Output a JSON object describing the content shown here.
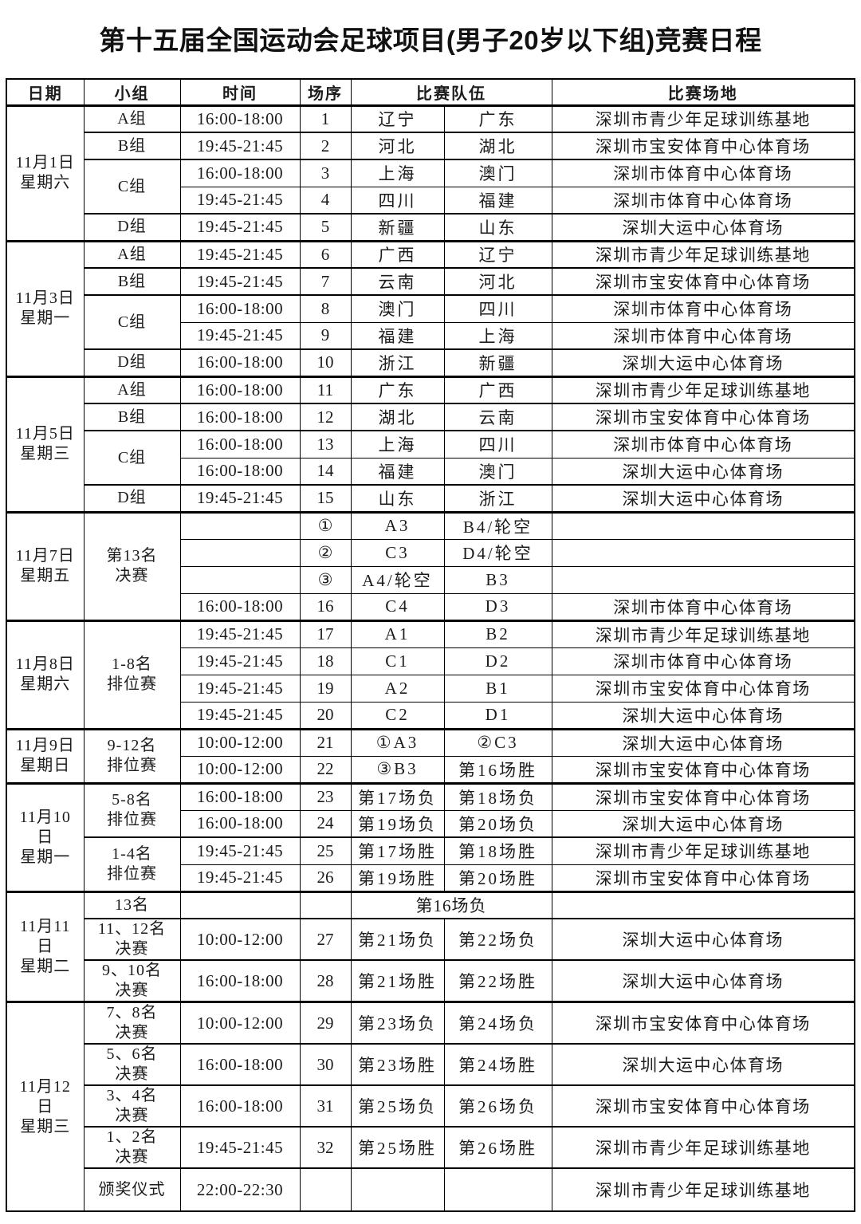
{
  "title": "第十五届全国运动会足球项目(男子20岁以下组)竞赛日程",
  "header": {
    "date": "日期",
    "group": "小组",
    "time": "时间",
    "match_no": "场序",
    "teams": "比赛队伍",
    "venue": "比赛场地"
  },
  "sections": [
    {
      "date_lines": [
        "11月1日",
        "星期六"
      ],
      "groups": [
        {
          "label_lines": [
            "A组"
          ],
          "rows": [
            {
              "time": "16:00-18:00",
              "no": "1",
              "team1": "辽宁",
              "team2": "广东",
              "venue": "深圳市青少年足球训练基地"
            }
          ]
        },
        {
          "label_lines": [
            "B组"
          ],
          "rows": [
            {
              "time": "19:45-21:45",
              "no": "2",
              "team1": "河北",
              "team2": "湖北",
              "venue": "深圳市宝安体育中心体育场"
            }
          ]
        },
        {
          "label_lines": [
            "C组"
          ],
          "rows": [
            {
              "time": "16:00-18:00",
              "no": "3",
              "team1": "上海",
              "team2": "澳门",
              "venue": "深圳市体育中心体育场"
            },
            {
              "time": "19:45-21:45",
              "no": "4",
              "team1": "四川",
              "team2": "福建",
              "venue": "深圳市体育中心体育场"
            }
          ]
        },
        {
          "label_lines": [
            "D组"
          ],
          "rows": [
            {
              "time": "19:45-21:45",
              "no": "5",
              "team1": "新疆",
              "team2": "山东",
              "venue": "深圳大运中心体育场"
            }
          ]
        }
      ]
    },
    {
      "date_lines": [
        "11月3日",
        "星期一"
      ],
      "groups": [
        {
          "label_lines": [
            "A组"
          ],
          "rows": [
            {
              "time": "19:45-21:45",
              "no": "6",
              "team1": "广西",
              "team2": "辽宁",
              "venue": "深圳市青少年足球训练基地"
            }
          ]
        },
        {
          "label_lines": [
            "B组"
          ],
          "rows": [
            {
              "time": "19:45-21:45",
              "no": "7",
              "team1": "云南",
              "team2": "河北",
              "venue": "深圳市宝安体育中心体育场"
            }
          ]
        },
        {
          "label_lines": [
            "C组"
          ],
          "rows": [
            {
              "time": "16:00-18:00",
              "no": "8",
              "team1": "澳门",
              "team2": "四川",
              "venue": "深圳市体育中心体育场"
            },
            {
              "time": "19:45-21:45",
              "no": "9",
              "team1": "福建",
              "team2": "上海",
              "venue": "深圳市体育中心体育场"
            }
          ]
        },
        {
          "label_lines": [
            "D组"
          ],
          "rows": [
            {
              "time": "16:00-18:00",
              "no": "10",
              "team1": "浙江",
              "team2": "新疆",
              "venue": "深圳大运中心体育场"
            }
          ]
        }
      ]
    },
    {
      "date_lines": [
        "11月5日",
        "星期三"
      ],
      "groups": [
        {
          "label_lines": [
            "A组"
          ],
          "rows": [
            {
              "time": "16:00-18:00",
              "no": "11",
              "team1": "广东",
              "team2": "广西",
              "venue": "深圳市青少年足球训练基地"
            }
          ]
        },
        {
          "label_lines": [
            "B组"
          ],
          "rows": [
            {
              "time": "16:00-18:00",
              "no": "12",
              "team1": "湖北",
              "team2": "云南",
              "venue": "深圳市宝安体育中心体育场"
            }
          ]
        },
        {
          "label_lines": [
            "C组"
          ],
          "rows": [
            {
              "time": "16:00-18:00",
              "no": "13",
              "team1": "上海",
              "team2": "四川",
              "venue": "深圳市体育中心体育场"
            },
            {
              "time": "16:00-18:00",
              "no": "14",
              "team1": "福建",
              "team2": "澳门",
              "venue": "深圳大运中心体育场"
            }
          ]
        },
        {
          "label_lines": [
            "D组"
          ],
          "rows": [
            {
              "time": "19:45-21:45",
              "no": "15",
              "team1": "山东",
              "team2": "浙江",
              "venue": "深圳大运中心体育场"
            }
          ]
        }
      ]
    },
    {
      "date_lines": [
        "11月7日",
        "星期五"
      ],
      "groups": [
        {
          "label_lines": [
            "第13名",
            "决赛"
          ],
          "rows": [
            {
              "time": "",
              "no": "①",
              "team1": "A3",
              "team2": "B4/轮空",
              "venue": ""
            },
            {
              "time": "",
              "no": "②",
              "team1": "C3",
              "team2": "D4/轮空",
              "venue": ""
            },
            {
              "time": "",
              "no": "③",
              "team1": "A4/轮空",
              "team2": "B3",
              "venue": ""
            },
            {
              "time": "16:00-18:00",
              "no": "16",
              "team1": "C4",
              "team2": "D3",
              "venue": "深圳市体育中心体育场"
            }
          ]
        }
      ]
    },
    {
      "date_lines": [
        "11月8日",
        "星期六"
      ],
      "groups": [
        {
          "label_lines": [
            "1-8名",
            "排位赛"
          ],
          "rows": [
            {
              "time": "19:45-21:45",
              "no": "17",
              "team1": "A1",
              "team2": "B2",
              "venue": "深圳市青少年足球训练基地"
            },
            {
              "time": "19:45-21:45",
              "no": "18",
              "team1": "C1",
              "team2": "D2",
              "venue": "深圳市体育中心体育场"
            },
            {
              "time": "19:45-21:45",
              "no": "19",
              "team1": "A2",
              "team2": "B1",
              "venue": "深圳市宝安体育中心体育场"
            },
            {
              "time": "19:45-21:45",
              "no": "20",
              "team1": "C2",
              "team2": "D1",
              "venue": "深圳大运中心体育场"
            }
          ]
        }
      ]
    },
    {
      "date_lines": [
        "11月9日",
        "星期日"
      ],
      "groups": [
        {
          "label_lines": [
            "9-12名",
            "排位赛"
          ],
          "rows": [
            {
              "time": "10:00-12:00",
              "no": "21",
              "team1": "①A3",
              "team2": "②C3",
              "venue": "深圳大运中心体育场"
            },
            {
              "time": "10:00-12:00",
              "no": "22",
              "team1": "③B3",
              "team2": "第16场胜",
              "venue": "深圳市宝安体育中心体育场"
            }
          ]
        }
      ]
    },
    {
      "date_lines": [
        "11月10",
        "日",
        "星期一"
      ],
      "groups": [
        {
          "label_lines": [
            "5-8名",
            "排位赛"
          ],
          "rows": [
            {
              "time": "16:00-18:00",
              "no": "23",
              "team1": "第17场负",
              "team2": "第18场负",
              "venue": "深圳市宝安体育中心体育场"
            },
            {
              "time": "16:00-18:00",
              "no": "24",
              "team1": "第19场负",
              "team2": "第20场负",
              "venue": "深圳大运中心体育场"
            }
          ]
        },
        {
          "label_lines": [
            "1-4名",
            "排位赛"
          ],
          "rows": [
            {
              "time": "19:45-21:45",
              "no": "25",
              "team1": "第17场胜",
              "team2": "第18场胜",
              "venue": "深圳市青少年足球训练基地"
            },
            {
              "time": "19:45-21:45",
              "no": "26",
              "team1": "第19场胜",
              "team2": "第20场胜",
              "venue": "深圳市宝安体育中心体育场"
            }
          ]
        }
      ]
    },
    {
      "date_lines": [
        "11月11",
        "日",
        "星期二"
      ],
      "groups": [
        {
          "label_lines": [
            "13名"
          ],
          "rows": [
            {
              "time": "",
              "no": "",
              "team_merged": "第16场负",
              "venue": ""
            }
          ]
        },
        {
          "label_lines": [
            "11、12名",
            "决赛"
          ],
          "rows": [
            {
              "time": "10:00-12:00",
              "no": "27",
              "team1": "第21场负",
              "team2": "第22场负",
              "venue": "深圳大运中心体育场"
            }
          ]
        },
        {
          "label_lines": [
            "9、10名",
            "决赛"
          ],
          "rows": [
            {
              "time": "16:00-18:00",
              "no": "28",
              "team1": "第21场胜",
              "team2": "第22场胜",
              "venue": "深圳大运中心体育场"
            }
          ]
        }
      ]
    },
    {
      "date_lines": [
        "11月12",
        "日",
        "星期三"
      ],
      "groups": [
        {
          "label_lines": [
            "7、8名",
            "决赛"
          ],
          "rows": [
            {
              "time": "10:00-12:00",
              "no": "29",
              "team1": "第23场负",
              "team2": "第24场负",
              "venue": "深圳市宝安体育中心体育场"
            }
          ]
        },
        {
          "label_lines": [
            "5、6名",
            "决赛"
          ],
          "rows": [
            {
              "time": "16:00-18:00",
              "no": "30",
              "team1": "第23场胜",
              "team2": "第24场胜",
              "venue": "深圳大运中心体育场"
            }
          ]
        },
        {
          "label_lines": [
            "3、4名",
            "决赛"
          ],
          "rows": [
            {
              "time": "16:00-18:00",
              "no": "31",
              "team1": "第25场负",
              "team2": "第26场负",
              "venue": "深圳市宝安体育中心体育场"
            }
          ]
        },
        {
          "label_lines": [
            "1、2名",
            "决赛"
          ],
          "rows": [
            {
              "time": "19:45-21:45",
              "no": "32",
              "team1": "第25场胜",
              "team2": "第26场胜",
              "venue": "深圳市青少年足球训练基地"
            }
          ]
        },
        {
          "label_lines": [
            "颁奖仪式"
          ],
          "rows": [
            {
              "time": "22:00-22:30",
              "no": "",
              "team1": "",
              "team2": "",
              "venue": "深圳市青少年足球训练基地"
            }
          ]
        }
      ]
    }
  ]
}
